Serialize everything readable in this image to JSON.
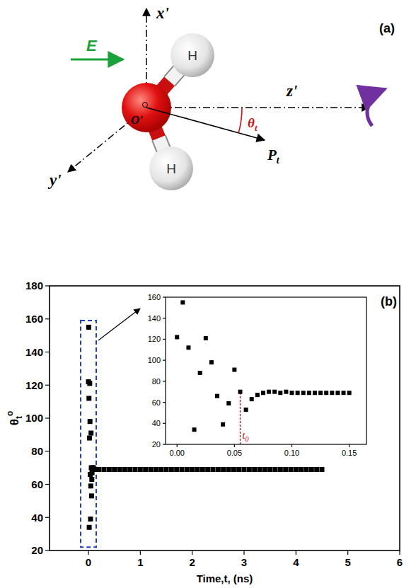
{
  "diagram": {
    "label": "(a)",
    "field": "E",
    "axis_x": "x'",
    "axis_y": "y'",
    "axis_z": "z'",
    "origin": "O'",
    "atoms": [
      "H",
      "H"
    ],
    "dipole": {
      "text": "P",
      "sub": "t"
    },
    "angle": {
      "text": "θ",
      "sub": "t"
    }
  },
  "chart_data": [
    {
      "type": "scatter",
      "label": "(b)",
      "xlabel": "Time,t, (ns)",
      "ylabel": {
        "text": "θ",
        "sub": "t",
        "sup": "o"
      },
      "xlim": [
        -0.75,
        6
      ],
      "ylim": [
        20,
        180
      ],
      "xticks": [
        0,
        1,
        2,
        3,
        4,
        5,
        6
      ],
      "yticks": [
        20,
        40,
        60,
        80,
        100,
        120,
        140,
        160,
        180
      ],
      "highlight": {
        "xlim": [
          -0.15,
          0.15
        ],
        "ylim": [
          22,
          159
        ],
        "color": "#2040c0"
      },
      "x": [
        0,
        0.005,
        0.01,
        0.015,
        0.02,
        0.025,
        0.03,
        0.035,
        0.04,
        0.045,
        0.05,
        0.055,
        0.06,
        0.065,
        0.07,
        0.075,
        0.08,
        0.085,
        0.09,
        0.095,
        0.1,
        0.105,
        0.11,
        0.115,
        0.12,
        0.125,
        0.13,
        0.135,
        0.14,
        0.145,
        0.15,
        0.2,
        0.3,
        0.4,
        0.5,
        0.6,
        0.7,
        0.8,
        0.9,
        1.0,
        1.1,
        1.2,
        1.3,
        1.4,
        1.5,
        1.6,
        1.7,
        1.8,
        1.9,
        2.0,
        2.1,
        2.2,
        2.3,
        2.4,
        2.5,
        2.6,
        2.7,
        2.8,
        2.9,
        3.0,
        3.1,
        3.2,
        3.3,
        3.4,
        3.5,
        3.6,
        3.7,
        3.8,
        3.9,
        4.0,
        4.1,
        4.2,
        4.3,
        4.4,
        4.5
      ],
      "series": [
        {
          "color": "#000000",
          "marker": "square",
          "values": [
            122,
            155,
            112,
            34,
            88,
            121,
            98,
            66,
            39,
            59,
            91,
            70,
            53,
            63,
            67,
            69,
            70,
            70,
            69,
            70,
            69,
            69,
            69,
            69,
            69,
            69,
            69,
            69,
            69,
            69,
            69,
            69,
            69,
            69,
            69,
            69,
            69,
            69,
            69,
            69,
            69,
            69,
            69,
            69,
            69,
            69,
            69,
            69,
            69,
            69,
            69,
            69,
            69,
            69,
            69,
            69,
            69,
            69,
            69,
            69,
            69,
            69,
            69,
            69,
            69,
            69,
            69,
            69,
            69,
            69,
            69,
            69,
            69,
            69,
            69
          ]
        }
      ]
    },
    {
      "type": "scatter",
      "xlim": [
        -0.01,
        0.165
      ],
      "ylim": [
        20,
        160
      ],
      "xticks": [
        {
          "value": 0,
          "label": "0.00"
        },
        {
          "value": 0.05,
          "label": "0.05"
        },
        {
          "value": 0.1,
          "label": "0.10"
        },
        {
          "value": 0.15,
          "label": "0.15"
        }
      ],
      "yticks": [
        20,
        40,
        60,
        80,
        100,
        120,
        140,
        160
      ],
      "annotations": [
        {
          "text": "t",
          "sub": "0",
          "x": 0.055,
          "y": 70,
          "color": "#cc0000"
        }
      ],
      "x": [
        0,
        0.005,
        0.01,
        0.015,
        0.02,
        0.025,
        0.03,
        0.035,
        0.04,
        0.045,
        0.05,
        0.055,
        0.06,
        0.065,
        0.07,
        0.075,
        0.08,
        0.085,
        0.09,
        0.095,
        0.1,
        0.105,
        0.11,
        0.115,
        0.12,
        0.125,
        0.13,
        0.135,
        0.14,
        0.145,
        0.15
      ],
      "series": [
        {
          "color": "#000000",
          "marker": "square",
          "values": [
            122,
            155,
            112,
            34,
            88,
            121,
            98,
            66,
            39,
            59,
            91,
            70,
            53,
            63,
            67,
            69,
            70,
            70,
            69,
            70,
            69,
            69,
            69,
            69,
            69,
            69,
            69,
            69,
            69,
            69,
            69
          ]
        }
      ]
    }
  ]
}
